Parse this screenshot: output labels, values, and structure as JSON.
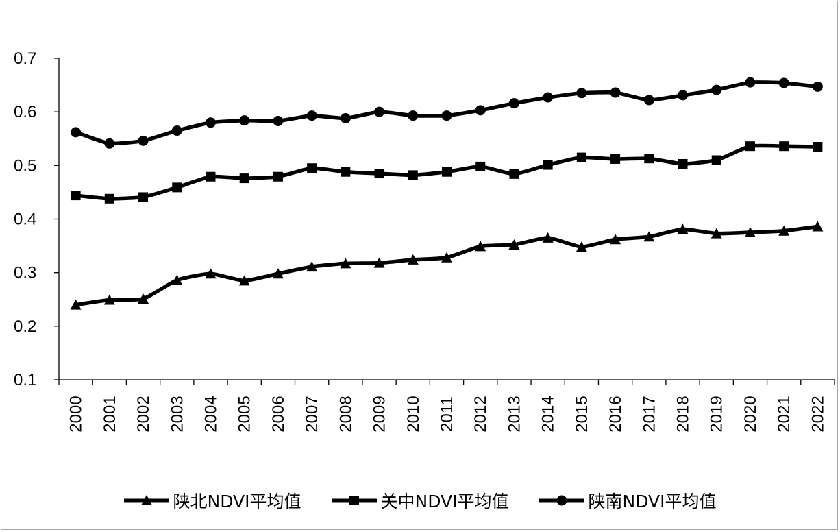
{
  "chart_data": {
    "type": "line",
    "title": "",
    "xlabel": "",
    "ylabel": "",
    "ylim": [
      0.1,
      0.7
    ],
    "yticks": [
      "0.1",
      "0.2",
      "0.3",
      "0.4",
      "0.5",
      "0.6",
      "0.7"
    ],
    "grid": false,
    "legend_position": "bottom",
    "categories": [
      "2000",
      "2001",
      "2002",
      "2003",
      "2004",
      "2005",
      "2006",
      "2007",
      "2008",
      "2009",
      "2010",
      "2011",
      "2012",
      "2013",
      "2014",
      "2015",
      "2016",
      "2017",
      "2018",
      "2019",
      "2020",
      "2021",
      "2022"
    ],
    "series": [
      {
        "name": "陕北NDVI平均值",
        "marker": "triangle",
        "color": "#000000",
        "values": [
          0.24,
          0.249,
          0.251,
          0.286,
          0.298,
          0.285,
          0.298,
          0.311,
          0.317,
          0.318,
          0.324,
          0.328,
          0.349,
          0.352,
          0.365,
          0.348,
          0.362,
          0.367,
          0.381,
          0.373,
          0.375,
          0.378,
          0.386
        ]
      },
      {
        "name": "关中NDVI平均值",
        "marker": "square",
        "color": "#000000",
        "values": [
          0.444,
          0.438,
          0.441,
          0.459,
          0.479,
          0.476,
          0.479,
          0.495,
          0.488,
          0.485,
          0.482,
          0.488,
          0.498,
          0.484,
          0.501,
          0.515,
          0.512,
          0.513,
          0.503,
          0.51,
          0.536,
          0.536,
          0.535
        ]
      },
      {
        "name": "陕南NDVI平均值",
        "marker": "circle",
        "color": "#000000",
        "values": [
          0.562,
          0.541,
          0.546,
          0.565,
          0.58,
          0.584,
          0.583,
          0.593,
          0.588,
          0.6,
          0.593,
          0.593,
          0.603,
          0.616,
          0.627,
          0.635,
          0.636,
          0.622,
          0.631,
          0.641,
          0.655,
          0.654,
          0.647
        ]
      }
    ]
  }
}
